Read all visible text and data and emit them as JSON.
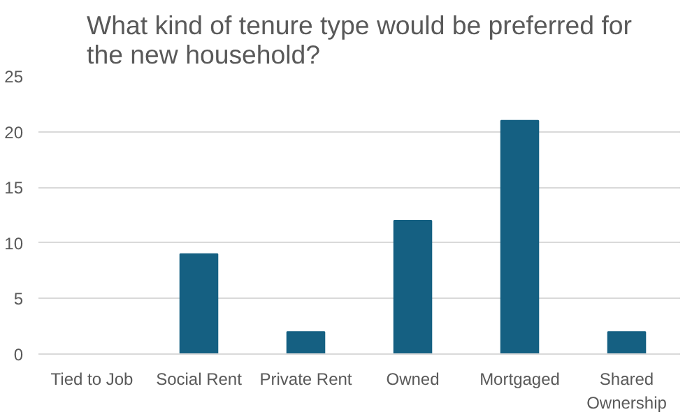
{
  "chart_data": {
    "type": "bar",
    "title": "What kind of tenure type would be preferred for the new household?",
    "categories": [
      "Tied to Job",
      "Social Rent",
      "Private Rent",
      "Owned",
      "Mortgaged",
      "Shared Ownership"
    ],
    "values": [
      0,
      9,
      2,
      12,
      21,
      2
    ],
    "color": "#156082",
    "ylim": [
      0,
      25
    ],
    "yticks": [
      0,
      5,
      10,
      15,
      20,
      25
    ],
    "grid": "y"
  }
}
